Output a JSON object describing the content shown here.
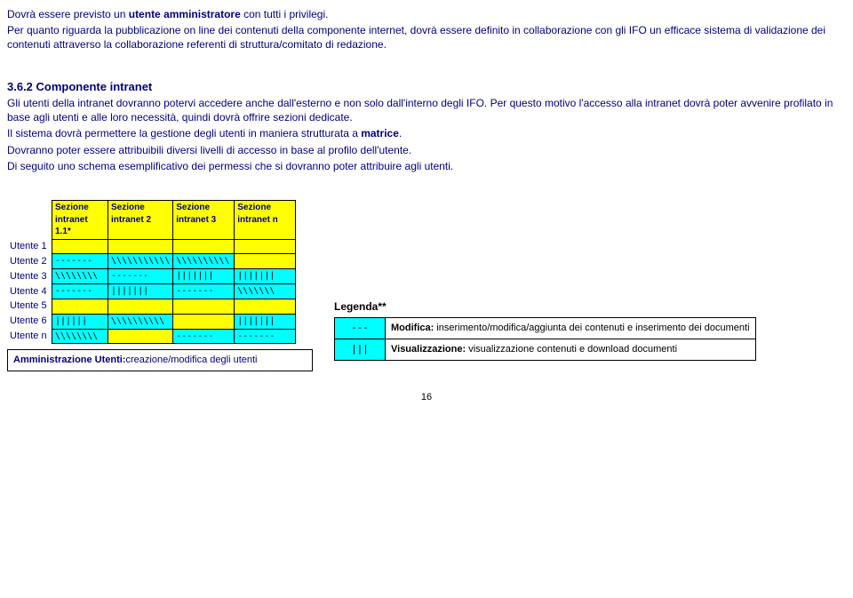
{
  "intro": {
    "p1_a": "Dovrà essere previsto un ",
    "p1_b": "utente amministratore",
    "p1_c": " con tutti i privilegi.",
    "p2": "Per quanto riguarda la pubblicazione on line dei contenuti della componente internet, dovrà essere definito in collaborazione con gli IFO un efficace sistema di validazione dei contenuti attraverso la collaborazione referenti di struttura/comitato di redazione."
  },
  "section": {
    "heading": "3.6.2 Componente intranet",
    "p1": "Gli utenti della intranet dovranno potervi accedere anche dall'esterno e non solo dall'interno degli IFO. Per questo motivo l'accesso alla intranet dovrà poter avvenire profilato in base agli utenti e alle loro necessità, quindi dovrà offrire sezioni dedicate.",
    "p2_a": "Il sistema dovrà permettere la gestione degli utenti in maniera strutturata a ",
    "p2_b": "matrice",
    "p2_c": ".",
    "p3": "Dovranno poter essere attribuibili diversi livelli di accesso in base al profilo dell'utente.",
    "p4": "Di seguito uno schema esemplificativo dei permessi che si dovranno poter attribuire agli utenti."
  },
  "matrix": {
    "headers": [
      "Sezione intranet 1.1*",
      "Sezione intranet 2",
      "Sezione intranet 3",
      "Sezione intranet n"
    ],
    "rows": [
      {
        "label": "Utente 1",
        "cells": [
          {
            "cls": "cell-y",
            "txt": ""
          },
          {
            "cls": "cell-y",
            "txt": ""
          },
          {
            "cls": "cell-y",
            "txt": ""
          },
          {
            "cls": "cell-y",
            "txt": ""
          }
        ]
      },
      {
        "label": "Utente 2",
        "cells": [
          {
            "cls": "cell-c",
            "txt": "-------"
          },
          {
            "cls": "cell-c",
            "txt": "\\\\\\\\\\\\\\\\\\\\\\"
          },
          {
            "cls": "cell-c",
            "txt": "\\\\\\\\\\\\\\\\\\\\"
          },
          {
            "cls": "cell-y",
            "txt": ""
          }
        ]
      },
      {
        "label": "Utente 3",
        "cells": [
          {
            "cls": "cell-c",
            "txt": "\\\\\\\\\\\\\\\\"
          },
          {
            "cls": "cell-c",
            "txt": "-------"
          },
          {
            "cls": "cell-c",
            "txt": "|||||||"
          },
          {
            "cls": "cell-c",
            "txt": "|||||||"
          }
        ]
      },
      {
        "label": "Utente 4",
        "cells": [
          {
            "cls": "cell-c",
            "txt": "-------"
          },
          {
            "cls": "cell-c",
            "txt": "|||||||"
          },
          {
            "cls": "cell-c",
            "txt": "-------"
          },
          {
            "cls": "cell-c",
            "txt": "\\\\\\\\\\\\\\"
          }
        ]
      },
      {
        "label": "Utente 5",
        "cells": [
          {
            "cls": "cell-y",
            "txt": ""
          },
          {
            "cls": "cell-y",
            "txt": ""
          },
          {
            "cls": "cell-y",
            "txt": ""
          },
          {
            "cls": "cell-y",
            "txt": ""
          }
        ]
      },
      {
        "label": "Utente 6",
        "cells": [
          {
            "cls": "cell-c",
            "txt": "||||||"
          },
          {
            "cls": "cell-c",
            "txt": "\\\\\\\\\\\\\\\\\\\\"
          },
          {
            "cls": "cell-y",
            "txt": ""
          },
          {
            "cls": "cell-c",
            "txt": "|||||||"
          }
        ]
      },
      {
        "label": "Utente n",
        "cells": [
          {
            "cls": "cell-c",
            "txt": "\\\\\\\\\\\\\\\\"
          },
          {
            "cls": "cell-y",
            "txt": ""
          },
          {
            "cls": "cell-c",
            "txt": "-------"
          },
          {
            "cls": "cell-c",
            "txt": "-------"
          }
        ]
      }
    ],
    "caption_a": "Amministrazione Utenti:",
    "caption_b": "creazione/modifica degli utenti"
  },
  "legend": {
    "title": "Legenda**",
    "rows": [
      {
        "sym": "---",
        "label_a": "Modifica:",
        "label_b": " inserimento/modifica/aggiunta dei contenuti e inserimento dei documenti"
      },
      {
        "sym": "|||",
        "label_a": "Visualizzazione:",
        "label_b": " visualizzazione contenuti e download documenti"
      }
    ]
  },
  "pagenum": "16"
}
